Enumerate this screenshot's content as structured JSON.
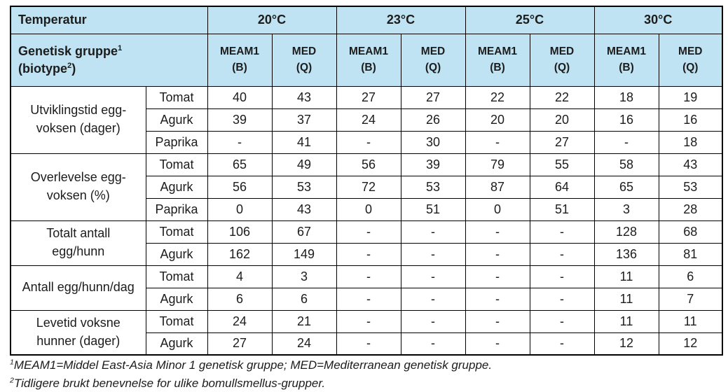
{
  "colors": {
    "header_bg": "#bfe3f2",
    "border": "#000000",
    "text": "#1c1c1c"
  },
  "table": {
    "corner_label": "Temperatur",
    "genetic_group": {
      "line1": "Genetisk gruppe",
      "sup1": "1",
      "line2_prefix": "(biotype",
      "sup2": "2",
      "line2_suffix": ")"
    },
    "temperatures": [
      "20°C",
      "23°C",
      "25°C",
      "30°C"
    ],
    "subheaders": [
      {
        "top": "MEAM1",
        "bottom": "(B)"
      },
      {
        "top": "MED",
        "bottom": "(Q)"
      }
    ],
    "row_groups": [
      {
        "label": "Utviklingstid egg-\nvoksen (dager)",
        "rows": [
          {
            "plant": "Tomat",
            "values": [
              "40",
              "43",
              "27",
              "27",
              "22",
              "22",
              "18",
              "19"
            ]
          },
          {
            "plant": "Agurk",
            "values": [
              "39",
              "37",
              "24",
              "26",
              "20",
              "20",
              "16",
              "16"
            ]
          },
          {
            "plant": "Paprika",
            "values": [
              "-",
              "41",
              "-",
              "30",
              "-",
              "27",
              "-",
              "18"
            ]
          }
        ]
      },
      {
        "label": "Overlevelse egg-\nvoksen (%)",
        "rows": [
          {
            "plant": "Tomat",
            "values": [
              "65",
              "49",
              "56",
              "39",
              "79",
              "55",
              "58",
              "43"
            ]
          },
          {
            "plant": "Agurk",
            "values": [
              "56",
              "53",
              "72",
              "53",
              "87",
              "64",
              "65",
              "53"
            ]
          },
          {
            "plant": "Paprika",
            "values": [
              "0",
              "43",
              "0",
              "51",
              "0",
              "51",
              "3",
              "28"
            ]
          }
        ]
      },
      {
        "label": "Totalt antall\negg/hunn",
        "rows": [
          {
            "plant": "Tomat",
            "values": [
              "106",
              "67",
              "-",
              "-",
              "-",
              "-",
              "128",
              "68"
            ]
          },
          {
            "plant": "Agurk",
            "values": [
              "162",
              "149",
              "-",
              "-",
              "-",
              "-",
              "136",
              "81"
            ]
          }
        ]
      },
      {
        "label": "Antall egg/hunn/dag",
        "rows": [
          {
            "plant": "Tomat",
            "values": [
              "4",
              "3",
              "-",
              "-",
              "-",
              "-",
              "11",
              "6"
            ]
          },
          {
            "plant": "Agurk",
            "values": [
              "6",
              "6",
              "-",
              "-",
              "-",
              "-",
              "11",
              "7"
            ]
          }
        ]
      },
      {
        "label": "Levetid voksne\nhunner (dager)",
        "rows": [
          {
            "plant": "Tomat",
            "values": [
              "24",
              "21",
              "-",
              "-",
              "-",
              "-",
              "11",
              "11"
            ]
          },
          {
            "plant": "Agurk",
            "values": [
              "27",
              "24",
              "-",
              "-",
              "-",
              "-",
              "12",
              "12"
            ]
          }
        ]
      }
    ]
  },
  "footnotes": [
    {
      "sup": "1",
      "text": "MEAM1=Middel East-Asia Minor 1 genetisk gruppe; MED=Mediterranean genetisk gruppe."
    },
    {
      "sup": "2",
      "text": "Tidligere brukt benevnelse for ulike bomullsmellus-grupper."
    }
  ]
}
